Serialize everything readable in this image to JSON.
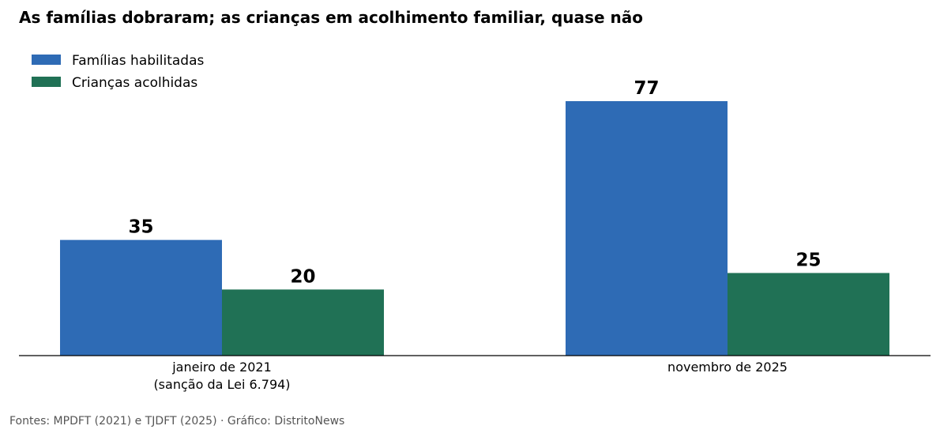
{
  "chart_data": {
    "type": "bar",
    "title": "As famílias dobraram; as crianças em acolhimento familiar, quase não",
    "categories": [
      [
        "janeiro de 2021",
        "(sanção da Lei 6.794)"
      ],
      [
        "novembro de 2025"
      ]
    ],
    "series": [
      {
        "name": "Famílias habilitadas",
        "color": "#2e6bb5",
        "values": [
          35,
          77
        ]
      },
      {
        "name": "Crianças acolhidas",
        "color": "#207155",
        "values": [
          20,
          25
        ]
      }
    ],
    "ylim": [
      0,
      77
    ],
    "grid": false,
    "legend_position": "top-left",
    "source": "Fontes: MPDFT (2021) e TJDFT (2025) · Gráfico: DistritoNews"
  }
}
